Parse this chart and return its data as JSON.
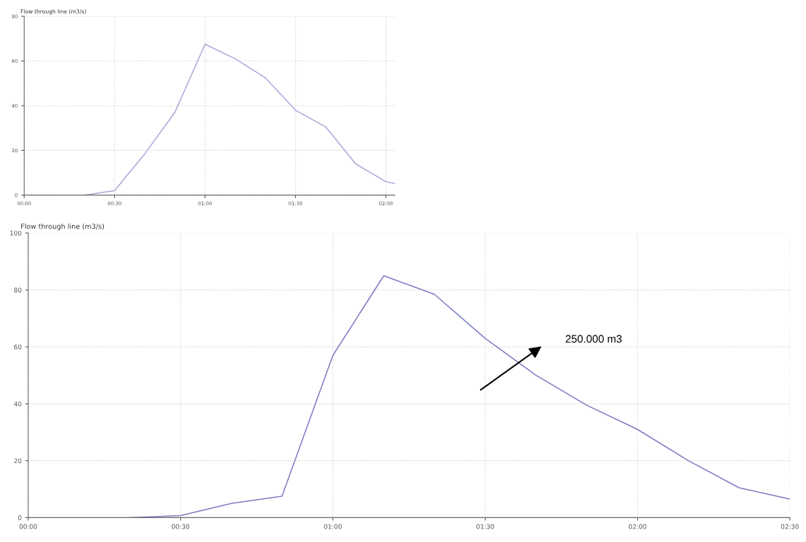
{
  "chart_data": [
    {
      "type": "line",
      "ylabel": "Flow through line (m3/s)",
      "x": [
        0.333,
        0.5,
        0.667,
        0.833,
        1.0,
        1.167,
        1.333,
        1.5,
        1.667,
        1.833,
        2.0,
        2.05
      ],
      "series": [
        {
          "color": "#a8a8d8",
          "values": [
            0,
            2,
            18.5,
            37,
            67.5,
            61,
            52.5,
            38,
            30.5,
            14,
            6,
            5.2
          ]
        }
      ],
      "xlim": [
        0,
        2.05
      ],
      "ylim": [
        0,
        80
      ],
      "yticks": [
        0,
        20,
        40,
        60,
        80
      ],
      "xticks": [
        {
          "value": 0,
          "label": "00:00"
        },
        {
          "value": 0.5,
          "label": "00:30"
        },
        {
          "value": 1.0,
          "label": "01:00"
        },
        {
          "value": 1.5,
          "label": "01:30"
        },
        {
          "value": 2.0,
          "label": "02:00"
        }
      ],
      "grid": true,
      "marker": "none",
      "line_style": "solid"
    },
    {
      "type": "line",
      "ylabel": "Flow through line (m3/s)",
      "x": [
        0.333,
        0.5,
        0.667,
        0.833,
        1.0,
        1.167,
        1.333,
        1.5,
        1.667,
        1.833,
        2.0,
        2.167,
        2.333,
        2.5
      ],
      "series": [
        {
          "color": "#7a7ac4",
          "values": [
            0,
            0.7,
            5,
            7.5,
            57,
            85,
            78.5,
            63,
            50,
            39.5,
            31,
            20,
            10.5,
            6.5
          ]
        }
      ],
      "xlim": [
        0,
        2.5
      ],
      "ylim": [
        0,
        100
      ],
      "yticks": [
        0,
        20,
        40,
        60,
        80,
        100
      ],
      "xticks": [
        {
          "value": 0,
          "label": "00:00"
        },
        {
          "value": 0.5,
          "label": "00:30"
        },
        {
          "value": 1.0,
          "label": "01:00"
        },
        {
          "value": 1.5,
          "label": "01:30"
        },
        {
          "value": 2.0,
          "label": "02:00"
        },
        {
          "value": 2.5,
          "label": "02:30"
        }
      ],
      "grid": true,
      "marker": "none",
      "line_style": "solid",
      "annotations": [
        "250.000 m3"
      ]
    }
  ]
}
